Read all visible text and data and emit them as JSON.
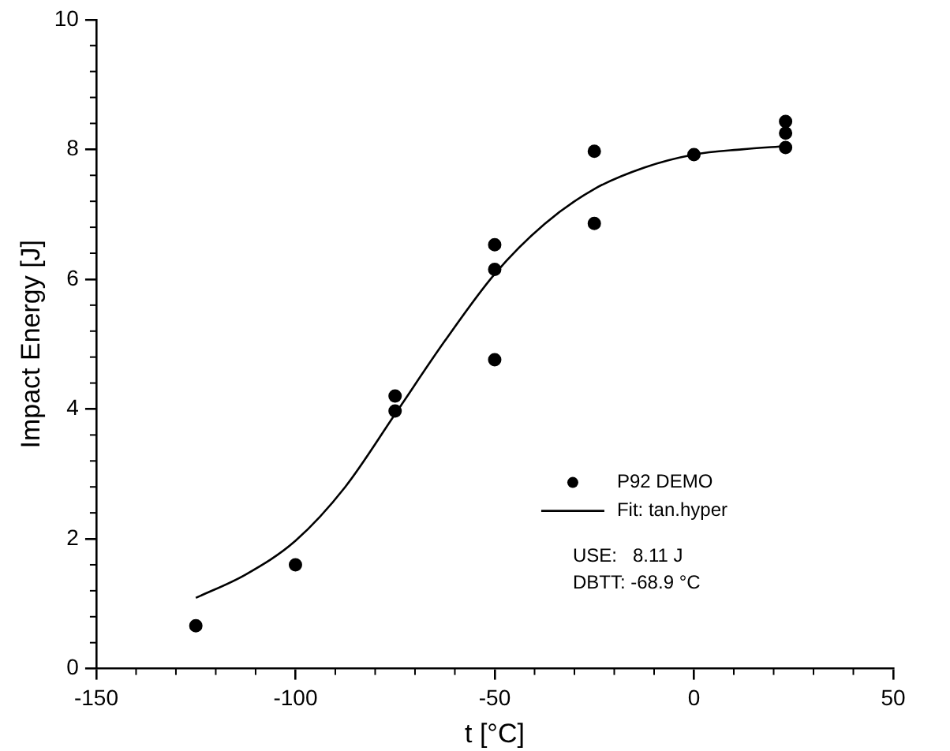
{
  "chart_data": {
    "type": "scatter",
    "xlabel": "t [°C]",
    "ylabel": "Impact Energy [J]",
    "xlim": [
      -150,
      50
    ],
    "xticks": [
      -150,
      -100,
      -50,
      0,
      50
    ],
    "ylim": [
      0,
      10
    ],
    "yticks": [
      0,
      2,
      4,
      6,
      8,
      10
    ],
    "grid": false,
    "legend": "bottom right",
    "marker": "circle",
    "series": [
      {
        "name": "P92 DEMO",
        "color": "#000000",
        "x": [
          -125,
          -100,
          -75,
          -75,
          -50,
          -50,
          -50,
          -25,
          -25,
          0,
          23,
          23,
          23
        ],
        "values": [
          0.66,
          1.6,
          4.2,
          3.97,
          6.53,
          6.15,
          4.76,
          7.97,
          6.86,
          7.92,
          8.43,
          8.25,
          8.03
        ]
      },
      {
        "name": "Fit: tan.hyper",
        "type": "line",
        "marker": "none",
        "line_style": "solid",
        "color": "#000000",
        "x": [
          -125,
          -112.5,
          -100,
          -87.5,
          -75,
          -62.5,
          -50,
          -37.5,
          -25,
          -12.5,
          0,
          12,
          23
        ],
        "values": [
          1.09,
          1.45,
          1.97,
          2.8,
          3.92,
          5.05,
          6.08,
          6.85,
          7.39,
          7.72,
          7.92,
          8.0,
          8.05
        ]
      }
    ],
    "annotations": [
      "USE:   8.11 J",
      "DBTT: -68.9 °C"
    ]
  }
}
